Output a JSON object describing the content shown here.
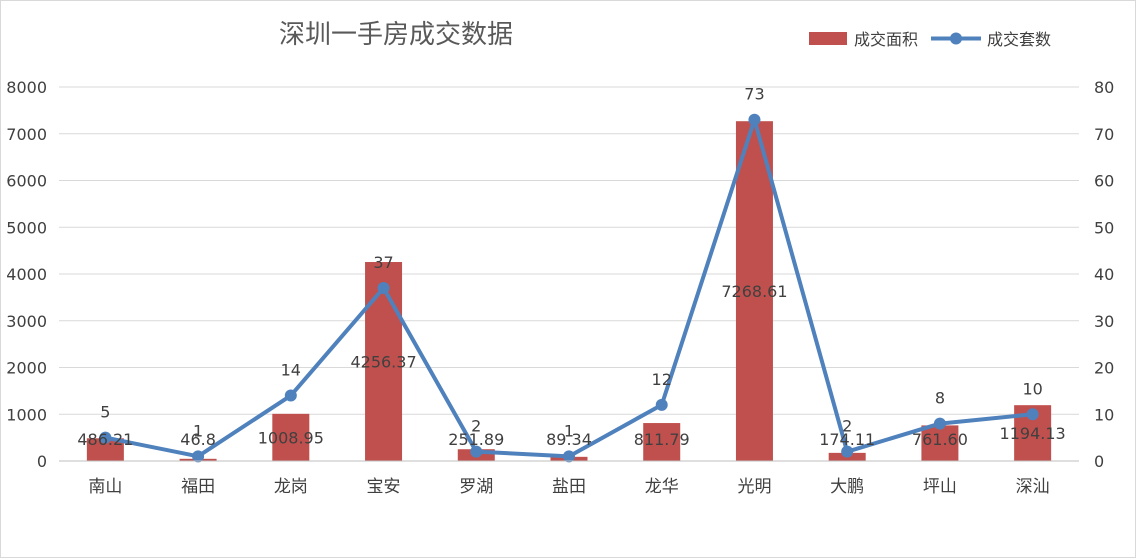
{
  "colors": {
    "bar": "#C0504D",
    "line": "#4F81BD",
    "grid": "#D9D9D9",
    "axis": "#BFBFBF",
    "text": "#404040",
    "title": "#595959"
  },
  "chart_data": {
    "type": "bar",
    "title": "深圳一手房成交数据",
    "xlabel": "",
    "ylabel": "",
    "categories": [
      "南山",
      "福田",
      "龙岗",
      "宝安",
      "罗湖",
      "盐田",
      "龙华",
      "光明",
      "大鹏",
      "坪山",
      "深汕"
    ],
    "series": [
      {
        "name": "成交面积",
        "kind": "bar",
        "axis": "left",
        "values": [
          486.21,
          46.8,
          1008.95,
          4256.37,
          251.89,
          89.34,
          811.79,
          7268.61,
          174.11,
          761.6,
          1194.13
        ],
        "labels": [
          "486.21",
          "46.8",
          "1008.95",
          "4256.37",
          "251.89",
          "89.34",
          "811.79",
          "7268.61",
          "174.11",
          "761.60",
          "1194.13"
        ]
      },
      {
        "name": "成交套数",
        "kind": "line",
        "axis": "right",
        "values": [
          5,
          1,
          14,
          37,
          2,
          1,
          12,
          73,
          2,
          8,
          10
        ],
        "labels": [
          "5",
          "1",
          "14",
          "37",
          "2",
          "1",
          "12",
          "73",
          "2",
          "8",
          "10"
        ]
      }
    ],
    "ylim": [
      0,
      8000
    ],
    "y_ticks": [
      "0",
      "1000",
      "2000",
      "3000",
      "4000",
      "5000",
      "6000",
      "7000",
      "8000"
    ],
    "y2lim": [
      0,
      80
    ],
    "y2_ticks": [
      "0",
      "10",
      "20",
      "30",
      "40",
      "50",
      "60",
      "70",
      "80"
    ],
    "grid": true,
    "legend_position": "top-right"
  }
}
